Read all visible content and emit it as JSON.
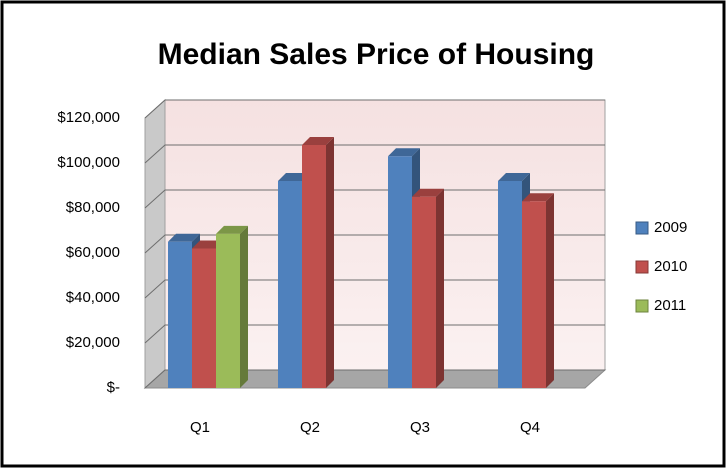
{
  "chart_data": {
    "type": "bar3d",
    "title": "Median Sales Price of Housing",
    "categories": [
      "Q1",
      "Q2",
      "Q3",
      "Q4"
    ],
    "series": [
      {
        "name": "2009",
        "color": "#4f81bd",
        "values": [
          65000,
          92000,
          103000,
          92000
        ]
      },
      {
        "name": "2010",
        "color": "#c0504d",
        "values": [
          62000,
          108000,
          85000,
          83000
        ]
      },
      {
        "name": "2011",
        "color": "#9bbb59",
        "values": [
          68500,
          null,
          null,
          null
        ]
      }
    ],
    "ylim": [
      0,
      120000
    ],
    "yticks": [
      {
        "value": 0,
        "label": "$-"
      },
      {
        "value": 20000,
        "label": "$20,000"
      },
      {
        "value": 40000,
        "label": "$40,000"
      },
      {
        "value": 60000,
        "label": "$60,000"
      },
      {
        "value": 80000,
        "label": "$80,000"
      },
      {
        "value": 100000,
        "label": "$100,000"
      },
      {
        "value": 120000,
        "label": "$120,000"
      }
    ],
    "grid": true,
    "legend": "right"
  }
}
